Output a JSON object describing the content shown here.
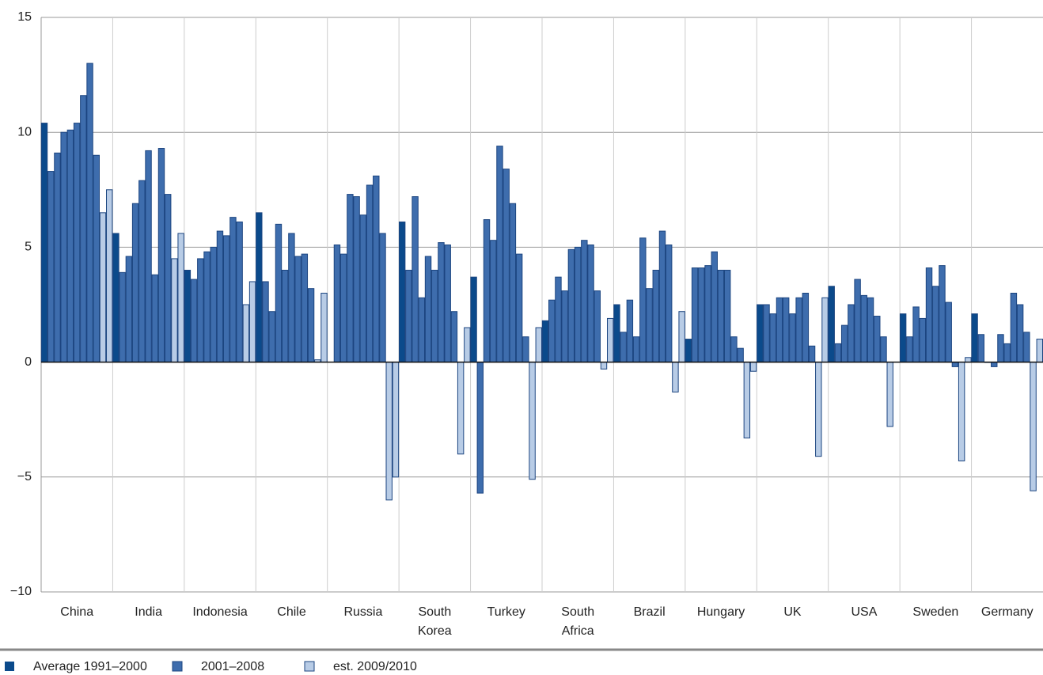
{
  "chart_data": {
    "type": "bar",
    "categories": [
      "China",
      "India",
      "Indonesia",
      "Chile",
      "Russia",
      "South Korea",
      "Turkey",
      "South Africa",
      "Brazil",
      "Hungary",
      "UK",
      "USA",
      "Sweden",
      "Germany"
    ],
    "series": [
      {
        "name": "Average 1991–2000",
        "color": "#0b4a8b",
        "values": [
          10.4,
          5.6,
          4.0,
          6.5,
          null,
          6.1,
          3.7,
          1.8,
          2.5,
          1.0,
          2.5,
          3.3,
          2.1,
          2.1
        ]
      },
      {
        "name": "2001–2008",
        "color": "#3e6dad",
        "values": [
          [
            8.3,
            9.1,
            10.0,
            10.1,
            10.4,
            11.6,
            13.0,
            9.0
          ],
          [
            3.9,
            4.6,
            6.9,
            7.9,
            9.2,
            3.8,
            9.3,
            7.3
          ],
          [
            3.6,
            4.5,
            4.8,
            5.0,
            5.7,
            5.5,
            6.3,
            6.1
          ],
          [
            3.5,
            2.2,
            6.0,
            4.0,
            5.6,
            4.6,
            4.7,
            3.2
          ],
          [
            5.1,
            4.7,
            7.3,
            7.2,
            6.4,
            7.7,
            8.1,
            5.6
          ],
          [
            4.0,
            7.2,
            2.8,
            4.6,
            4.0,
            5.2,
            5.1,
            2.2
          ],
          [
            -5.7,
            6.2,
            5.3,
            9.4,
            8.4,
            6.9,
            4.7,
            1.1
          ],
          [
            2.7,
            3.7,
            3.1,
            4.9,
            5.0,
            5.3,
            5.1,
            3.1
          ],
          [
            1.3,
            2.7,
            1.1,
            5.4,
            3.2,
            4.0,
            5.7,
            5.1
          ],
          [
            4.1,
            4.1,
            4.2,
            4.8,
            4.0,
            4.0,
            1.1,
            0.6
          ],
          [
            2.5,
            2.1,
            2.8,
            2.8,
            2.1,
            2.8,
            3.0,
            0.7
          ],
          [
            0.8,
            1.6,
            2.5,
            3.6,
            2.9,
            2.8,
            2.0,
            1.1
          ],
          [
            1.1,
            2.4,
            1.9,
            4.1,
            3.3,
            4.2,
            2.6,
            -0.2
          ],
          [
            1.2,
            0.0,
            -0.2,
            1.2,
            0.8,
            3.0,
            2.5,
            1.3
          ]
        ]
      },
      {
        "name": "est. 2009/2010",
        "color": "#b8cce6",
        "values": [
          [
            6.5,
            7.5
          ],
          [
            4.5,
            5.6
          ],
          [
            2.5,
            3.5
          ],
          [
            0.1,
            3.0
          ],
          [
            -6.0,
            -5.0
          ],
          [
            -4.0,
            1.5
          ],
          [
            -5.1,
            1.5
          ],
          [
            -0.3,
            1.9
          ],
          [
            -1.3,
            2.2
          ],
          [
            -3.3,
            -0.4
          ],
          [
            -4.1,
            2.8
          ],
          [
            -2.8,
            null
          ],
          [
            -4.3,
            0.2
          ],
          [
            -5.6,
            1.0
          ]
        ]
      }
    ],
    "ylim": [
      -10,
      15
    ],
    "yticks": [
      {
        "value": -10,
        "label": "−10"
      },
      {
        "value": -5,
        "label": "−5"
      },
      0,
      5,
      10,
      15
    ],
    "grid": true
  }
}
